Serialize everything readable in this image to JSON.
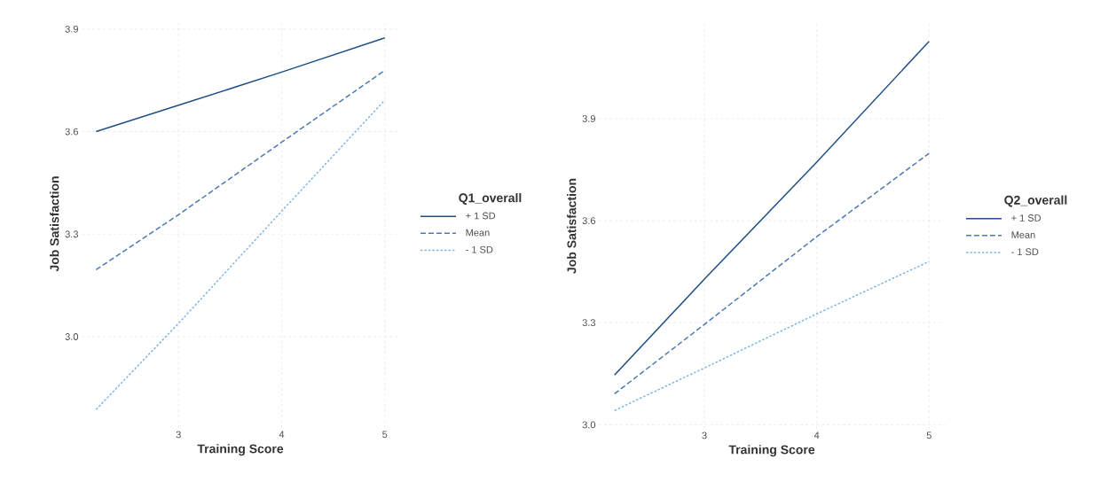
{
  "chart_data": [
    {
      "type": "line",
      "xlabel": "Training Score",
      "ylabel": "Job Satisfaction",
      "legend_title": "Q1_overall",
      "series": [
        {
          "name": "+ 1 SD",
          "color": "#1f4e86",
          "x": [
            2.2,
            3,
            4,
            5
          ],
          "values": [
            3.6,
            3.677,
            3.774,
            3.874
          ],
          "line_style": "solid"
        },
        {
          "name": "Mean",
          "color": "#4a7ab5",
          "x": [
            2.2,
            3,
            4,
            5
          ],
          "values": [
            3.196,
            3.357,
            3.569,
            3.779
          ],
          "line_style": "dashed"
        },
        {
          "name": "- 1 SD",
          "color": "#80b6e4",
          "x": [
            2.2,
            3,
            4,
            5
          ],
          "values": [
            2.787,
            3.039,
            3.367,
            3.692
          ],
          "line_style": "dotted"
        }
      ],
      "xlim": [
        2.06,
        5.14
      ],
      "ylim": [
        2.733,
        3.928
      ],
      "xticks": [
        3,
        4,
        5
      ],
      "yticks": [
        {
          "value": 3,
          "label": "3.0"
        },
        3.3,
        3.6,
        3.9
      ],
      "grid": true,
      "legend": "right"
    },
    {
      "type": "line",
      "xlabel": "Training Score",
      "ylabel": "Job Satisfaction",
      "legend_title": "Q2_overall",
      "series": [
        {
          "name": "+ 1 SD",
          "color": "#1f4e86",
          "x": [
            2.2,
            3,
            4,
            5
          ],
          "values": [
            3.146,
            3.428,
            3.772,
            4.127
          ],
          "line_style": "solid"
        },
        {
          "name": "Mean",
          "color": "#4a7ab5",
          "x": [
            2.2,
            3,
            4,
            5
          ],
          "values": [
            3.091,
            3.295,
            3.553,
            3.798
          ],
          "line_style": "dashed"
        },
        {
          "name": "- 1 SD",
          "color": "#80b6e4",
          "x": [
            2.2,
            3,
            4,
            5
          ],
          "values": [
            3.042,
            3.167,
            3.326,
            3.48
          ],
          "line_style": "dotted"
        }
      ],
      "xlim": [
        2.06,
        5.14
      ],
      "ylim": [
        2.988,
        4.181
      ],
      "xticks": [
        3,
        4,
        5
      ],
      "yticks": [
        {
          "value": 3,
          "label": "3.0"
        },
        3.3,
        3.6,
        3.9
      ],
      "grid": true,
      "legend": "right"
    }
  ]
}
